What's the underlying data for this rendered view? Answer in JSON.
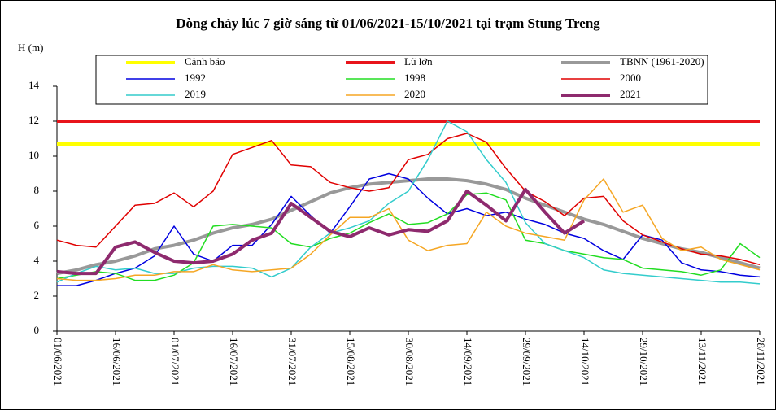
{
  "chart_data": {
    "type": "line",
    "title": "Dòng chảy lúc 7 giờ sáng từ 01/06/2021-15/10/2021 tại trạm Stung Treng",
    "y_label": "H (m)",
    "x": [
      "01/06/2021",
      "06/06/2021",
      "11/06/2021",
      "16/06/2021",
      "21/06/2021",
      "26/06/2021",
      "01/07/2021",
      "06/07/2021",
      "11/07/2021",
      "16/07/2021",
      "21/07/2021",
      "26/07/2021",
      "31/07/2021",
      "05/08/2021",
      "10/08/2021",
      "15/08/2021",
      "20/08/2021",
      "25/08/2021",
      "30/08/2021",
      "04/09/2021",
      "09/09/2021",
      "14/09/2021",
      "19/09/2021",
      "24/09/2021",
      "29/09/2021",
      "04/10/2021",
      "09/10/2021",
      "14/10/2021",
      "19/10/2021",
      "24/10/2021",
      "29/10/2021",
      "03/11/2021",
      "08/11/2021",
      "13/11/2021",
      "18/11/2021",
      "23/11/2021",
      "28/11/2021"
    ],
    "xlim": [
      "01/06/2021",
      "28/11/2021"
    ],
    "xticks": [
      "01/06/2021",
      "16/06/2021",
      "01/07/2021",
      "16/07/2021",
      "31/07/2021",
      "15/08/2021",
      "30/08/2021",
      "14/09/2021",
      "29/09/2021",
      "14/10/2021",
      "29/10/2021",
      "13/11/2021",
      "28/11/2021"
    ],
    "ylim": [
      0,
      14
    ],
    "yticks": [
      0,
      2,
      4,
      6,
      8,
      10,
      12,
      14
    ],
    "series": [
      {
        "name": "Cảnh báo",
        "color": "#ffff00",
        "width": 4,
        "values": [
          10.7,
          10.7,
          10.7,
          10.7,
          10.7,
          10.7,
          10.7,
          10.7,
          10.7,
          10.7,
          10.7,
          10.7,
          10.7,
          10.7,
          10.7,
          10.7,
          10.7,
          10.7,
          10.7,
          10.7,
          10.7,
          10.7,
          10.7,
          10.7,
          10.7,
          10.7,
          10.7,
          10.7,
          10.7,
          10.7,
          10.7,
          10.7,
          10.7,
          10.7,
          10.7,
          10.7,
          10.7
        ]
      },
      {
        "name": "Lũ lớn",
        "color": "#e8141b",
        "width": 4,
        "values": [
          12,
          12,
          12,
          12,
          12,
          12,
          12,
          12,
          12,
          12,
          12,
          12,
          12,
          12,
          12,
          12,
          12,
          12,
          12,
          12,
          12,
          12,
          12,
          12,
          12,
          12,
          12,
          12,
          12,
          12,
          12,
          12,
          12,
          12,
          12,
          12,
          12
        ]
      },
      {
        "name": "TBNN (1961-2020)",
        "color": "#999999",
        "width": 4,
        "values": [
          3.3,
          3.5,
          3.8,
          4.0,
          4.3,
          4.7,
          4.9,
          5.2,
          5.6,
          5.9,
          6.1,
          6.4,
          6.9,
          7.4,
          7.9,
          8.2,
          8.4,
          8.5,
          8.6,
          8.7,
          8.7,
          8.6,
          8.4,
          8.1,
          7.6,
          7.2,
          6.8,
          6.4,
          6.1,
          5.7,
          5.3,
          5.0,
          4.7,
          4.5,
          4.2,
          3.9,
          3.6
        ]
      },
      {
        "name": "1992",
        "color": "#0000e0",
        "width": 1.5,
        "values": [
          2.6,
          2.6,
          2.9,
          3.3,
          3.6,
          4.3,
          6.0,
          4.4,
          4.0,
          4.9,
          4.9,
          6.1,
          7.7,
          6.6,
          5.6,
          7.1,
          8.7,
          9.0,
          8.7,
          7.6,
          6.7,
          7.0,
          6.6,
          6.8,
          6.4,
          6.1,
          5.6,
          5.3,
          4.6,
          4.1,
          5.5,
          5.2,
          3.9,
          3.5,
          3.4,
          3.2,
          3.1
        ]
      },
      {
        "name": "1998",
        "color": "#22dd22",
        "width": 1.5,
        "values": [
          3.0,
          3.2,
          3.4,
          3.3,
          2.9,
          2.9,
          3.2,
          3.9,
          6.0,
          6.1,
          6.0,
          5.9,
          5.0,
          4.8,
          5.3,
          5.6,
          6.2,
          6.7,
          6.1,
          6.2,
          6.7,
          7.8,
          7.9,
          7.5,
          5.2,
          5.0,
          4.6,
          4.4,
          4.2,
          4.1,
          3.6,
          3.5,
          3.4,
          3.2,
          3.5,
          5.0,
          4.2
        ]
      },
      {
        "name": "2000",
        "color": "#e00000",
        "width": 1.5,
        "values": [
          5.2,
          4.9,
          4.8,
          6.0,
          7.2,
          7.3,
          7.9,
          7.1,
          8.0,
          10.1,
          10.5,
          10.9,
          9.5,
          9.4,
          8.5,
          8.2,
          8.0,
          8.2,
          9.8,
          10.1,
          11.0,
          11.3,
          10.8,
          9.3,
          8.0,
          7.4,
          6.6,
          7.6,
          7.7,
          6.3,
          5.5,
          5.1,
          4.7,
          4.4,
          4.3,
          4.1,
          3.8
        ]
      },
      {
        "name": "2019",
        "color": "#33cccc",
        "width": 1.5,
        "values": [
          2.8,
          3.3,
          3.7,
          3.5,
          3.6,
          3.3,
          3.3,
          3.6,
          3.7,
          3.7,
          3.6,
          3.1,
          3.6,
          4.8,
          5.6,
          5.9,
          6.3,
          7.3,
          8.0,
          9.8,
          12.0,
          11.4,
          9.8,
          8.5,
          6.2,
          5.0,
          4.6,
          4.2,
          3.5,
          3.3,
          3.2,
          3.1,
          3.0,
          2.9,
          2.8,
          2.8,
          2.7
        ]
      },
      {
        "name": "2020",
        "color": "#f5a623",
        "width": 1.5,
        "values": [
          3.0,
          2.9,
          2.9,
          3.0,
          3.2,
          3.2,
          3.4,
          3.4,
          3.8,
          3.5,
          3.4,
          3.5,
          3.6,
          4.4,
          5.5,
          6.5,
          6.5,
          7.0,
          5.2,
          4.6,
          4.9,
          5.0,
          6.8,
          6.0,
          5.6,
          5.4,
          5.2,
          7.5,
          8.7,
          6.8,
          7.2,
          5.3,
          4.6,
          4.8,
          4.1,
          3.8,
          3.5
        ]
      },
      {
        "name": "2021",
        "color": "#8e2a6e",
        "width": 4,
        "values": [
          3.4,
          3.3,
          3.3,
          4.8,
          5.1,
          4.5,
          4.0,
          3.9,
          4.0,
          4.4,
          5.2,
          5.6,
          7.3,
          6.5,
          5.7,
          5.4,
          5.9,
          5.5,
          5.8,
          5.7,
          6.3,
          8.0,
          7.2,
          6.3,
          8.1,
          6.8,
          5.6,
          6.3,
          null,
          null,
          null,
          null,
          null,
          null,
          null,
          null,
          null
        ]
      }
    ]
  }
}
